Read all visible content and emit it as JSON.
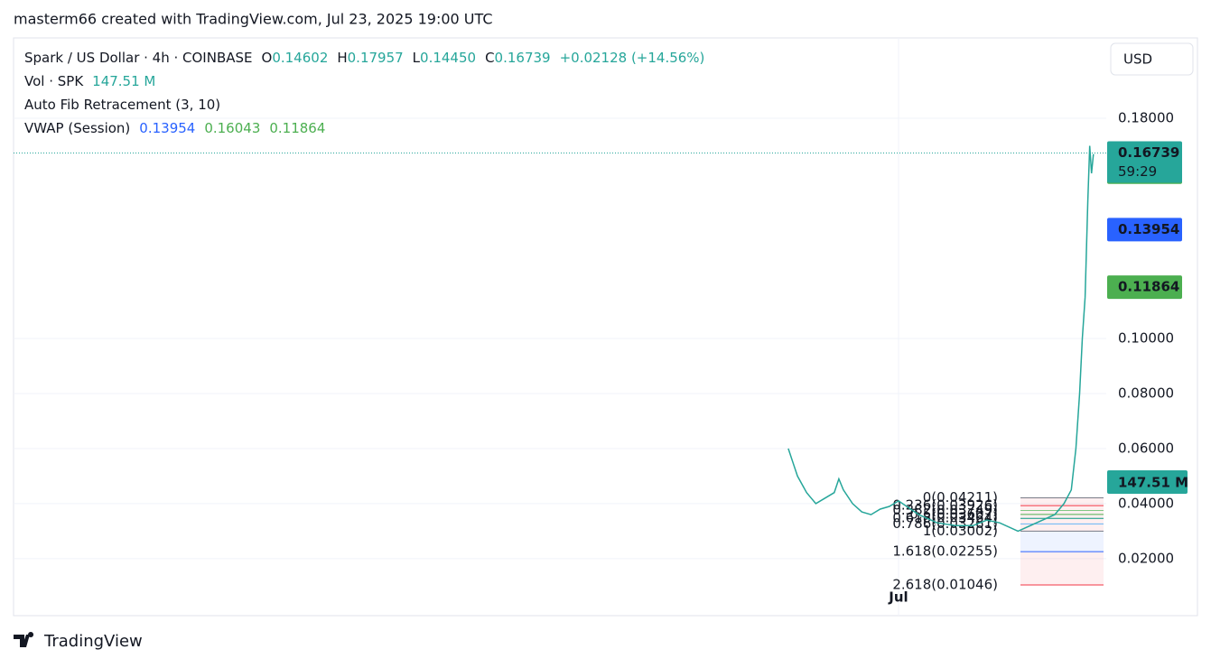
{
  "header": "masterm66 created with TradingView.com, Jul 23, 2025 19:00 UTC",
  "chart_data": {
    "type": "line",
    "title": "Spark / US Dollar · 4h · COINBASE",
    "ohlc": [
      {
        "key": "O",
        "value": "0.14602"
      },
      {
        "key": "H",
        "value": "0.17957"
      },
      {
        "key": "L",
        "value": "0.14450"
      },
      {
        "key": "C",
        "value": "0.16739"
      }
    ],
    "change": "+0.02128 (+14.56%)",
    "volume_label": "Vol · SPK",
    "volume": "147.51 M",
    "fib_title": "Auto Fib Retracement (3, 10)",
    "fib": [
      {
        "label": "0(0.04211)",
        "value": 0.04211,
        "color": "#787b86"
      },
      {
        "label": "0.236(0.03926)",
        "value": 0.03926,
        "color": "#f23645"
      },
      {
        "label": "0.382(0.03749)",
        "value": 0.03749,
        "color": "#81c784"
      },
      {
        "label": "0.5(0.03607)",
        "value": 0.03607,
        "color": "#4caf50"
      },
      {
        "label": "0.618(0.03464)",
        "value": 0.03464,
        "color": "#089981"
      },
      {
        "label": "0.786(0.03261)",
        "value": 0.03261,
        "color": "#64b5f6"
      },
      {
        "label": "1(0.03002)",
        "value": 0.03002,
        "color": "#787b86"
      },
      {
        "label": "1.618(0.02255)",
        "value": 0.02255,
        "color": "#2962ff"
      },
      {
        "label": "2.618(0.01046)",
        "value": 0.01046,
        "color": "#f23645"
      }
    ],
    "vwap_title": "VWAP (Session)",
    "vwap": [
      {
        "value": 0.13954,
        "color": "#2962ff"
      },
      {
        "value": 0.16043,
        "color": "#4caf50"
      },
      {
        "value": 0.11864,
        "color": "#4caf50"
      }
    ],
    "last_price": 0.16739,
    "countdown": "59:29",
    "currency": "USD",
    "color": "#26a69a",
    "x": [
      -12,
      -11.5,
      -11,
      -10,
      -9.5,
      -9,
      -8,
      -7,
      -6.5,
      -6,
      -5,
      -4,
      -3,
      -2,
      -1,
      0,
      2.2,
      4.2,
      6.2,
      8.1,
      9.6,
      11,
      13,
      15,
      17,
      18,
      18.8,
      19.3,
      19.7,
      20,
      20.3,
      20.6,
      20.8,
      21,
      21.2
    ],
    "values": [
      0.06,
      0.055,
      0.05,
      0.044,
      0.042,
      0.04,
      0.042,
      0.044,
      0.049,
      0.045,
      0.04,
      0.037,
      0.036,
      0.038,
      0.039,
      0.041,
      0.036,
      0.033,
      0.032,
      0.032,
      0.034,
      0.033,
      0.03,
      0.033,
      0.036,
      0.04,
      0.045,
      0.06,
      0.08,
      0.1,
      0.115,
      0.15,
      0.17,
      0.16,
      0.167
    ],
    "xlim": [
      -96.3,
      22.6
    ],
    "xticks": [
      {
        "value": 0,
        "label": "Jul"
      }
    ],
    "ylim": [
      -0.0007,
      0.2092
    ],
    "yticks": [
      {
        "value": 0.02,
        "label": "0.02000"
      },
      {
        "value": 0.04,
        "label": "0.04000"
      },
      {
        "value": 0.06,
        "label": "0.06000"
      },
      {
        "value": 0.08,
        "label": "0.08000"
      },
      {
        "value": 0.1,
        "label": "0.10000"
      },
      {
        "value": 0.18,
        "label": "0.18000"
      }
    ],
    "grid": true
  },
  "footer": "TradingView"
}
